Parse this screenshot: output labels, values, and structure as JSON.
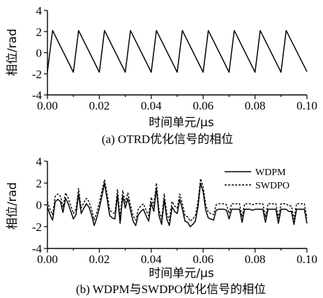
{
  "chart_data": [
    {
      "type": "line",
      "xlabel": "时间单元/μs",
      "ylabel": "相位/rad",
      "caption": "(a) OTRD优化信号的相位",
      "xlim": [
        0,
        0.1
      ],
      "ylim": [
        -4,
        4
      ],
      "xticks": [
        "0.00",
        "0.02",
        "0.04",
        "0.06",
        "0.08",
        "0.10"
      ],
      "yticks": [
        "4",
        "2",
        "0",
        "-2",
        "-4"
      ],
      "series": [
        {
          "style": "solid",
          "x": [
            0.0,
            0.002,
            0.01,
            0.012,
            0.02,
            0.022,
            0.03,
            0.032,
            0.04,
            0.042,
            0.05,
            0.052,
            0.06,
            0.062,
            0.07,
            0.072,
            0.08,
            0.082,
            0.09,
            0.092,
            0.1
          ],
          "y": [
            -1.8,
            2.1,
            -1.85,
            2.1,
            -1.85,
            2.1,
            -1.85,
            2.1,
            -1.85,
            2.1,
            -1.85,
            2.1,
            -1.85,
            2.1,
            -1.85,
            2.1,
            -1.85,
            2.1,
            -1.85,
            2.1,
            -1.8
          ]
        }
      ]
    },
    {
      "type": "line",
      "xlabel": "时间单元/μs",
      "ylabel": "相位/rad",
      "caption": "(b) WDPM与SWDPO优化信号的相位",
      "xlim": [
        0,
        0.1
      ],
      "ylim": [
        -4,
        4
      ],
      "xticks": [
        "0.00",
        "0.02",
        "0.04",
        "0.06",
        "0.08",
        "0.10"
      ],
      "yticks": [
        "4",
        "2",
        "0",
        "-2",
        "-4"
      ],
      "legend_position": "top-right",
      "series": [
        {
          "name": "WDPM",
          "style": "solid",
          "x": [
            0.0,
            0.001,
            0.002,
            0.003,
            0.004,
            0.005,
            0.006,
            0.007,
            0.008,
            0.009,
            0.01,
            0.011,
            0.012,
            0.013,
            0.014,
            0.015,
            0.016,
            0.017,
            0.018,
            0.019,
            0.02,
            0.021,
            0.022,
            0.023,
            0.024,
            0.025,
            0.026,
            0.027,
            0.028,
            0.029,
            0.03,
            0.031,
            0.032,
            0.033,
            0.034,
            0.035,
            0.036,
            0.037,
            0.038,
            0.039,
            0.04,
            0.041,
            0.042,
            0.043,
            0.044,
            0.045,
            0.046,
            0.047,
            0.048,
            0.049,
            0.05,
            0.051,
            0.052,
            0.053,
            0.054,
            0.055,
            0.056,
            0.057,
            0.058,
            0.059,
            0.06,
            0.061,
            0.062,
            0.063,
            0.064,
            0.065,
            0.066,
            0.067,
            0.068,
            0.069,
            0.07,
            0.071,
            0.072,
            0.073,
            0.074,
            0.075,
            0.076,
            0.077,
            0.078,
            0.079,
            0.08,
            0.081,
            0.082,
            0.083,
            0.084,
            0.085,
            0.086,
            0.087,
            0.088,
            0.089,
            0.09,
            0.091,
            0.092,
            0.093,
            0.094,
            0.095,
            0.096,
            0.097,
            0.098,
            0.099,
            0.1
          ],
          "y": [
            -0.2,
            -0.9,
            -1.4,
            0.3,
            0.5,
            0.3,
            -0.7,
            0.6,
            0.1,
            -0.6,
            -1.3,
            -0.9,
            1.0,
            -0.8,
            -0.3,
            0.1,
            -0.2,
            -0.9,
            -1.9,
            -1.2,
            -0.3,
            0.8,
            2.0,
            0.5,
            -1.0,
            -1.2,
            -1.3,
            0.9,
            -1.7,
            0.8,
            -0.3,
            0.6,
            -0.5,
            -1.5,
            -1.9,
            -0.9,
            -0.6,
            -0.4,
            -1.0,
            -1.5,
            0.2,
            -0.6,
            1.5,
            -1.0,
            -1.8,
            0.5,
            -1.3,
            -1.9,
            -0.2,
            -0.6,
            -0.8,
            0.5,
            -0.4,
            -1.5,
            -1.6,
            -2.0,
            -1.8,
            -1.5,
            -0.2,
            2.0,
            1.2,
            -0.5,
            -1.2,
            -1.3,
            -1.4,
            -0.5,
            -0.4,
            -0.4,
            -0.4,
            -0.5,
            -1.3,
            -0.4,
            -0.4,
            -0.4,
            -0.4,
            -1.6,
            -0.4,
            -0.4,
            -0.4,
            -0.5,
            -0.4,
            -0.4,
            -0.4,
            -0.4,
            -1.6,
            -0.4,
            -0.4,
            -0.4,
            -0.4,
            -1.7,
            -0.4,
            -0.4,
            -0.4,
            -0.6,
            -0.6,
            -1.8,
            -0.4,
            -0.4,
            -0.4,
            -0.4,
            -1.7
          ]
        },
        {
          "name": "SWDPO",
          "style": "dashed",
          "x": [
            0.0,
            0.001,
            0.002,
            0.003,
            0.004,
            0.005,
            0.006,
            0.007,
            0.008,
            0.009,
            0.01,
            0.011,
            0.012,
            0.013,
            0.014,
            0.015,
            0.016,
            0.017,
            0.018,
            0.019,
            0.02,
            0.021,
            0.022,
            0.023,
            0.024,
            0.025,
            0.026,
            0.027,
            0.028,
            0.029,
            0.03,
            0.031,
            0.032,
            0.033,
            0.034,
            0.035,
            0.036,
            0.037,
            0.038,
            0.039,
            0.04,
            0.041,
            0.042,
            0.043,
            0.044,
            0.045,
            0.046,
            0.047,
            0.048,
            0.049,
            0.05,
            0.051,
            0.052,
            0.053,
            0.054,
            0.055,
            0.056,
            0.057,
            0.058,
            0.059,
            0.06,
            0.061,
            0.062,
            0.063,
            0.064,
            0.065,
            0.066,
            0.067,
            0.068,
            0.069,
            0.07,
            0.071,
            0.072,
            0.073,
            0.074,
            0.075,
            0.076,
            0.077,
            0.078,
            0.079,
            0.08,
            0.081,
            0.082,
            0.083,
            0.084,
            0.085,
            0.086,
            0.087,
            0.088,
            0.089,
            0.09,
            0.091,
            0.092,
            0.093,
            0.094,
            0.095,
            0.096,
            0.097,
            0.098,
            0.099,
            0.1
          ],
          "y": [
            0.3,
            -0.4,
            -0.9,
            0.8,
            1.0,
            0.8,
            -0.2,
            1.1,
            0.6,
            -0.1,
            -0.8,
            -0.4,
            1.5,
            -0.3,
            0.2,
            0.6,
            0.3,
            -0.4,
            -1.4,
            -0.7,
            0.2,
            1.3,
            2.3,
            1.0,
            -0.5,
            -0.7,
            -0.8,
            1.4,
            -1.2,
            1.3,
            0.2,
            1.1,
            0.0,
            -1.0,
            -1.4,
            -0.4,
            -0.1,
            0.1,
            -0.5,
            -1.0,
            0.7,
            -0.1,
            2.0,
            -0.5,
            -1.3,
            1.0,
            -0.8,
            -1.4,
            0.3,
            -0.1,
            -0.3,
            1.0,
            0.1,
            -1.0,
            -1.1,
            -1.5,
            -1.3,
            -1.0,
            0.3,
            2.4,
            1.7,
            0.0,
            -0.7,
            -0.8,
            -0.9,
            0.0,
            0.1,
            0.1,
            0.1,
            0.0,
            -0.8,
            0.1,
            0.1,
            0.1,
            0.1,
            -1.1,
            0.1,
            0.1,
            0.1,
            0.0,
            0.1,
            0.1,
            0.1,
            0.1,
            -1.1,
            0.1,
            0.1,
            0.1,
            0.1,
            -1.2,
            0.1,
            0.1,
            0.1,
            -0.1,
            -0.1,
            -1.3,
            0.1,
            0.1,
            0.1,
            0.1,
            -1.2
          ]
        }
      ]
    }
  ]
}
